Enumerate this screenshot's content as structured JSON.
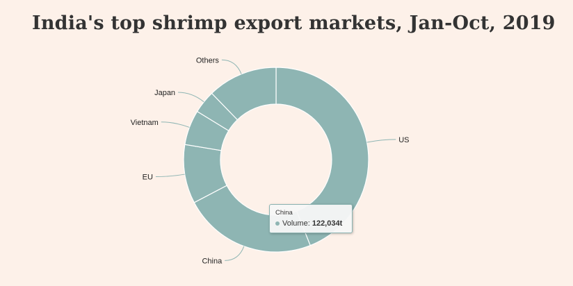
{
  "chart_data": {
    "type": "pie",
    "title": "India's top shrimp export markets, Jan-Oct, 2019",
    "categories": [
      "US",
      "China",
      "EU",
      "Vietnam",
      "Japan",
      "Others"
    ],
    "values": [
      230000,
      122034,
      54000,
      32000,
      21000,
      64000
    ],
    "unit": "t",
    "donut": true,
    "colors": {
      "slice": "#8eb5b3",
      "border": "#ffffff",
      "connector": "#8eb5b3",
      "label": "#222222"
    },
    "tooltip": {
      "category": "China",
      "series": "Volume",
      "value": "122,034t"
    }
  }
}
